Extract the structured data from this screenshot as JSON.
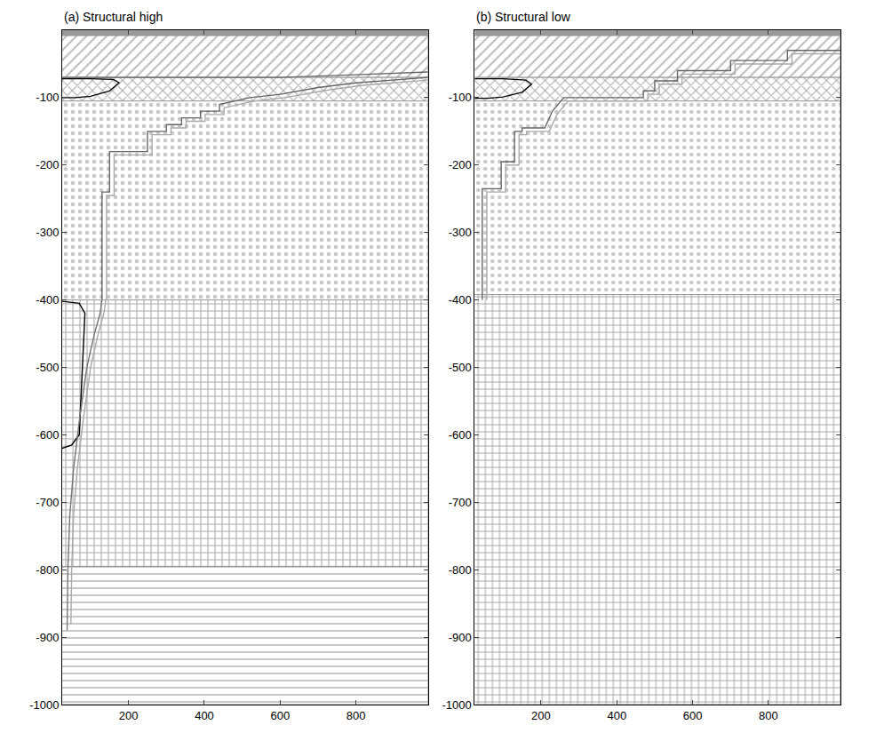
{
  "chart_data": [
    {
      "type": "line",
      "title": "(a) Structural high",
      "xlim": [
        25,
        990
      ],
      "ylim": [
        -1000,
        0
      ],
      "xticks": [
        200,
        400,
        600,
        800
      ],
      "yticks": [
        -100,
        -200,
        -300,
        -400,
        -500,
        -600,
        -700,
        -800,
        -900,
        -1000
      ],
      "grid": false,
      "tick_labels": true,
      "series": [
        {
          "type": "area",
          "color": "#999999",
          "marker": "solid",
          "x": [
            25,
            990,
            990,
            25
          ],
          "values": [
            0,
            0,
            -8,
            -8
          ]
        },
        {
          "type": "area",
          "color": "#bbbbbb",
          "marker": "/",
          "x": [
            25,
            990,
            990,
            25
          ],
          "values": [
            -8,
            -8,
            -70,
            -70
          ]
        },
        {
          "type": "area",
          "color": "#aaaaaa",
          "marker": "x",
          "x": [
            25,
            990,
            990,
            25
          ],
          "values": [
            -70,
            -70,
            -105,
            -105
          ]
        },
        {
          "type": "area",
          "color": "#c8c8c8",
          "marker": ".",
          "x": [
            25,
            990,
            990,
            25
          ],
          "values": [
            -105,
            -105,
            -400,
            -400
          ]
        },
        {
          "type": "area",
          "color": "#aaaaaa",
          "marker": "+",
          "x": [
            25,
            990,
            990,
            25
          ],
          "values": [
            -400,
            -400,
            -795,
            -795
          ]
        },
        {
          "type": "area",
          "color": "#c8c8c8",
          "marker": "-",
          "x": [
            25,
            990,
            990,
            25
          ],
          "values": [
            -795,
            -795,
            -1000,
            -1000
          ]
        },
        {
          "type": "line",
          "color": "#000000",
          "x": [
            25,
            100,
            160,
            175,
            150,
            100,
            60,
            25
          ],
          "values": [
            -72,
            -72,
            -73,
            -78,
            -90,
            -98,
            -100,
            -100
          ]
        },
        {
          "type": "line",
          "color": "#666666",
          "x": [
            25,
            300,
            600,
            800,
            990
          ],
          "values": [
            -70,
            -70,
            -70,
            -66,
            -62
          ]
        },
        {
          "type": "line",
          "color": "#666666",
          "x": [
            130,
            130,
            150,
            150,
            250,
            250,
            300,
            300,
            340,
            340,
            390,
            390,
            440,
            440,
            520,
            600,
            700,
            800,
            990
          ],
          "values": [
            -400,
            -240,
            -240,
            -180,
            -180,
            -150,
            -150,
            -140,
            -140,
            -130,
            -130,
            -120,
            -120,
            -110,
            -100,
            -95,
            -85,
            -78,
            -70
          ]
        },
        {
          "type": "line",
          "color": "#aaaaaa",
          "x": [
            142,
            142,
            162,
            162,
            262,
            262,
            312,
            312,
            352,
            352,
            402,
            402,
            452,
            452,
            532,
            612,
            712,
            812,
            990
          ],
          "values": [
            -400,
            -245,
            -245,
            -185,
            -185,
            -155,
            -155,
            -145,
            -145,
            -135,
            -135,
            -125,
            -125,
            -115,
            -105,
            -100,
            -90,
            -82,
            -74
          ]
        },
        {
          "type": "line",
          "color": "#000000",
          "x": [
            25,
            70,
            85,
            80,
            75,
            70,
            50,
            25
          ],
          "values": [
            -402,
            -405,
            -420,
            -480,
            -560,
            -600,
            -615,
            -620
          ]
        },
        {
          "type": "line",
          "color": "#777777",
          "x": [
            130,
            125,
            110,
            90,
            70,
            55,
            45,
            40,
            38
          ],
          "values": [
            -400,
            -420,
            -450,
            -500,
            -580,
            -650,
            -720,
            -800,
            -890
          ]
        },
        {
          "type": "line",
          "color": "#aaaaaa",
          "x": [
            140,
            135,
            120,
            100,
            80,
            65,
            55,
            50,
            48
          ],
          "values": [
            -400,
            -420,
            -450,
            -500,
            -580,
            -650,
            -720,
            -800,
            -880
          ]
        }
      ]
    },
    {
      "type": "line",
      "title": "(b) Structural low",
      "xlim": [
        25,
        990
      ],
      "ylim": [
        -1000,
        0
      ],
      "xticks": [
        200,
        400,
        600,
        800
      ],
      "yticks": [
        -100,
        -200,
        -300,
        -400,
        -500,
        -600,
        -700,
        -800,
        -900,
        -1000
      ],
      "grid": false,
      "tick_labels": true,
      "series": [
        {
          "type": "area",
          "color": "#999999",
          "marker": "solid",
          "x": [
            25,
            990,
            990,
            25
          ],
          "values": [
            0,
            0,
            -8,
            -8
          ]
        },
        {
          "type": "area",
          "color": "#bbbbbb",
          "marker": "/",
          "x": [
            25,
            990,
            990,
            25
          ],
          "values": [
            -8,
            -8,
            -70,
            -70
          ]
        },
        {
          "type": "area",
          "color": "#aaaaaa",
          "marker": "x",
          "x": [
            25,
            990,
            990,
            25
          ],
          "values": [
            -70,
            -70,
            -105,
            -105
          ]
        },
        {
          "type": "area",
          "color": "#c8c8c8",
          "marker": ".",
          "x": [
            25,
            990,
            990,
            25
          ],
          "values": [
            -105,
            -105,
            -392,
            -392
          ]
        },
        {
          "type": "area",
          "color": "#aaaaaa",
          "marker": "+",
          "x": [
            25,
            990,
            990,
            25
          ],
          "values": [
            -392,
            -392,
            -1000,
            -1000
          ]
        },
        {
          "type": "line",
          "color": "#000000",
          "x": [
            25,
            100,
            160,
            175,
            150,
            100,
            60,
            25
          ],
          "values": [
            -72,
            -72,
            -74,
            -80,
            -92,
            -99,
            -101,
            -101
          ]
        },
        {
          "type": "line",
          "color": "#666666",
          "x": [
            45,
            45,
            95,
            95,
            130,
            130,
            150,
            150,
            210,
            230,
            260,
            470,
            470,
            500,
            500,
            560,
            560,
            700,
            700,
            850,
            850,
            990
          ],
          "values": [
            -400,
            -235,
            -235,
            -195,
            -195,
            -150,
            -150,
            -145,
            -145,
            -120,
            -100,
            -100,
            -90,
            -90,
            -75,
            -75,
            -60,
            -60,
            -45,
            -45,
            -30,
            -30
          ]
        },
        {
          "type": "line",
          "color": "#aaaaaa",
          "x": [
            57,
            57,
            107,
            107,
            142,
            142,
            162,
            162,
            222,
            242,
            272,
            482,
            482,
            512,
            512,
            572,
            572,
            712,
            712,
            862,
            862,
            990
          ],
          "values": [
            -400,
            -240,
            -240,
            -200,
            -200,
            -155,
            -155,
            -150,
            -150,
            -125,
            -105,
            -105,
            -95,
            -95,
            -80,
            -80,
            -65,
            -65,
            -50,
            -50,
            -35,
            -35
          ]
        }
      ]
    }
  ]
}
